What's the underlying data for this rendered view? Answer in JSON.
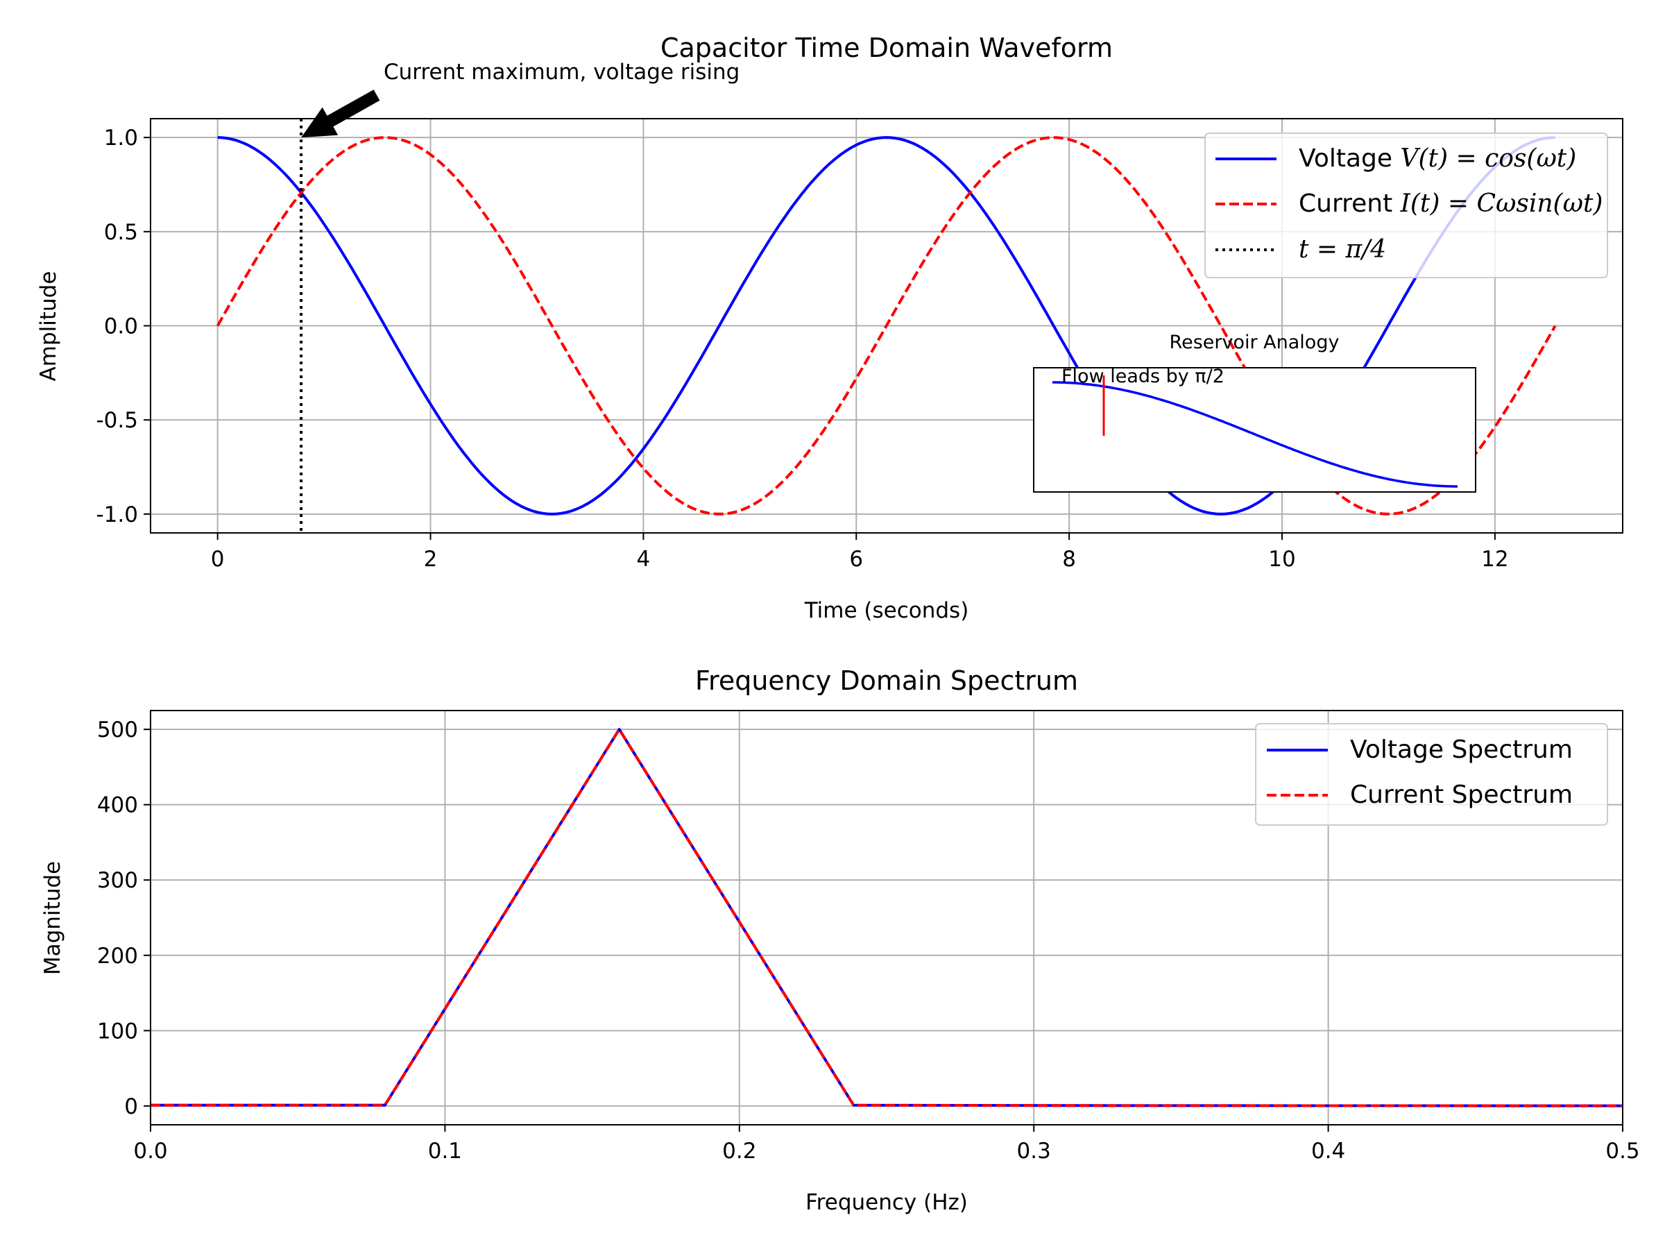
{
  "chart_data": [
    {
      "type": "line",
      "title": "Capacitor Time Domain Waveform",
      "xlabel": "Time (seconds)",
      "ylabel": "Amplitude",
      "xlim": [
        -0.63,
        13.2
      ],
      "ylim": [
        -1.1,
        1.1
      ],
      "xticks": [
        0,
        2,
        4,
        6,
        8,
        10,
        12
      ],
      "xtick_labels": [
        "0",
        "2",
        "4",
        "6",
        "8",
        "10",
        "12"
      ],
      "yticks": [
        -1.0,
        -0.5,
        0.0,
        0.5,
        1.0
      ],
      "ytick_labels": [
        "-1.0",
        "-0.5",
        "0.0",
        "0.5",
        "1.0"
      ],
      "grid": true,
      "legend_position": "upper-right",
      "series": [
        {
          "name": "Voltage V(t) = cos(ωt)",
          "name_plain": "Voltage ",
          "name_math": "V(t) = cos(ωt)",
          "function": "cos",
          "x_range": [
            0,
            12.566
          ],
          "color": "#0000ff",
          "style": "solid"
        },
        {
          "name": "Current I(t) = Cωsin(ωt)",
          "name_plain": "Current ",
          "name_math": "I(t) = Cωsin(ωt)",
          "function": "sin",
          "x_range": [
            0,
            12.566
          ],
          "color": "#ff0000",
          "style": "dashed"
        }
      ],
      "vline": {
        "x": 0.785,
        "label": "t = π/4",
        "color": "#000000",
        "style": "dotted"
      },
      "annotations": [
        {
          "text": "Current maximum, voltage rising",
          "arrow_tip": [
            0.785,
            1.0
          ]
        }
      ],
      "inset": {
        "title": "Reservoir Analogy",
        "text": "Flow leads by π/2",
        "curve_function": "cos",
        "curve_color": "#0000ff",
        "marker_color": "#ff0000"
      }
    },
    {
      "type": "line",
      "title": "Frequency Domain Spectrum",
      "xlabel": "Frequency (Hz)",
      "ylabel": "Magnitude",
      "xlim": [
        0.0,
        0.5
      ],
      "ylim": [
        -25,
        525
      ],
      "xticks": [
        0.0,
        0.1,
        0.2,
        0.3,
        0.4,
        0.5
      ],
      "xtick_labels": [
        "0.0",
        "0.1",
        "0.2",
        "0.3",
        "0.4",
        "0.5"
      ],
      "yticks": [
        0,
        100,
        200,
        300,
        400,
        500
      ],
      "ytick_labels": [
        "0",
        "100",
        "200",
        "300",
        "400",
        "500"
      ],
      "grid": true,
      "legend_position": "upper-right",
      "series": [
        {
          "name": "Voltage Spectrum",
          "x": [
            0.0,
            0.0796,
            0.1592,
            0.2388,
            0.3183,
            0.3979,
            0.4775,
            0.5
          ],
          "values": [
            1,
            1,
            500,
            1,
            0.5,
            0.3,
            0.2,
            0.2
          ],
          "color": "#0000ff",
          "style": "solid"
        },
        {
          "name": "Current Spectrum",
          "x": [
            0.0,
            0.0796,
            0.1592,
            0.2388,
            0.3183,
            0.3979,
            0.4775,
            0.5
          ],
          "values": [
            1,
            1,
            500,
            1,
            0.5,
            0.3,
            0.2,
            0.2
          ],
          "color": "#ff0000",
          "style": "dashed"
        }
      ]
    }
  ]
}
